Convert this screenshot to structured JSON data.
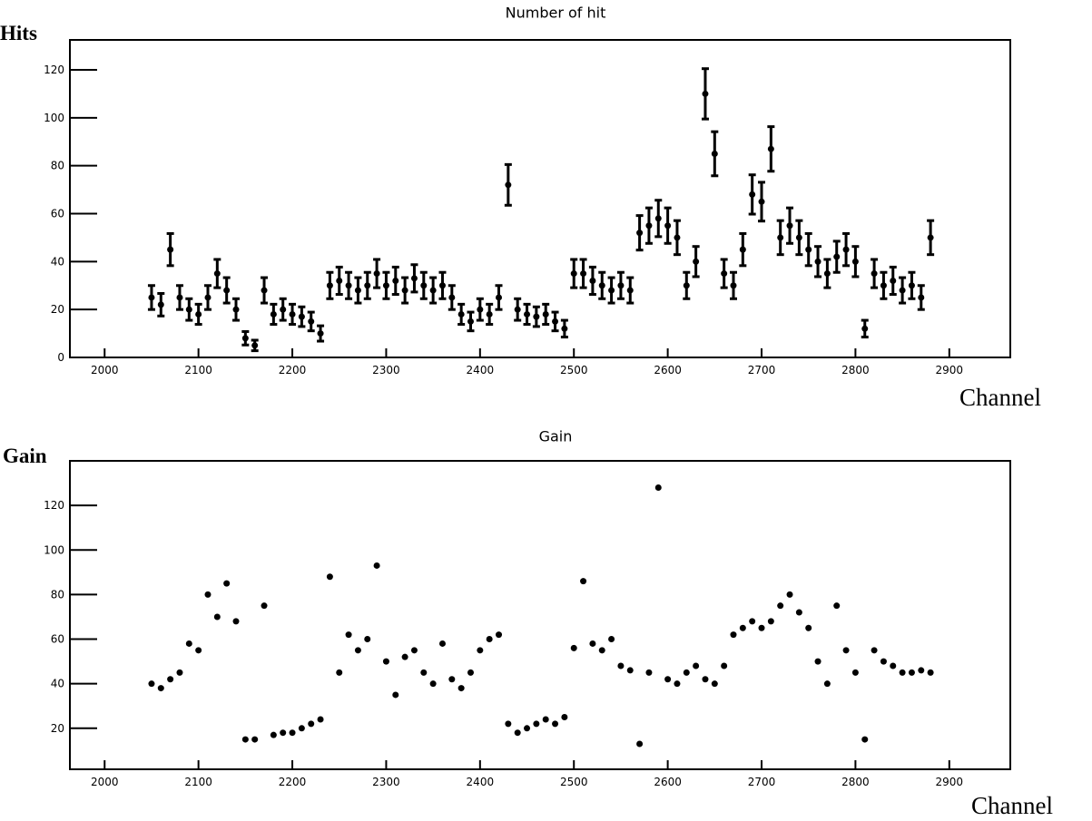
{
  "chart_data": [
    {
      "type": "scatter",
      "title": "Number of hit",
      "y_label": "Hits",
      "x_label": "Channel",
      "color": "#000000",
      "xlim": [
        1963,
        2965
      ],
      "ylim": [
        0,
        132.5
      ],
      "xticks": [
        2000,
        2100,
        2200,
        2300,
        2400,
        2500,
        2600,
        2700,
        2800,
        2900
      ],
      "yticks": [
        0,
        20,
        40,
        60,
        80,
        100,
        120
      ],
      "x": [
        2050,
        2060,
        2070,
        2080,
        2090,
        2100,
        2110,
        2120,
        2130,
        2140,
        2150,
        2160,
        2170,
        2180,
        2190,
        2200,
        2210,
        2220,
        2230,
        2240,
        2250,
        2260,
        2270,
        2280,
        2290,
        2300,
        2310,
        2320,
        2330,
        2340,
        2350,
        2360,
        2370,
        2380,
        2390,
        2400,
        2410,
        2420,
        2430,
        2440,
        2450,
        2460,
        2470,
        2480,
        2490,
        2500,
        2510,
        2520,
        2530,
        2540,
        2550,
        2560,
        2570,
        2580,
        2590,
        2600,
        2610,
        2620,
        2630,
        2640,
        2650,
        2660,
        2670,
        2680,
        2690,
        2700,
        2710,
        2720,
        2730,
        2740,
        2750,
        2760,
        2770,
        2780,
        2790,
        2800,
        2810,
        2820,
        2830,
        2840,
        2850,
        2860,
        2870,
        2880
      ],
      "values": [
        25,
        22,
        45,
        25,
        20,
        18,
        25,
        35,
        28,
        20,
        8,
        5,
        28,
        18,
        20,
        18,
        17,
        15,
        10,
        30,
        32,
        30,
        28,
        30,
        35,
        30,
        32,
        28,
        33,
        30,
        28,
        30,
        25,
        18,
        15,
        20,
        18,
        25,
        72,
        20,
        18,
        17,
        18,
        15,
        12,
        35,
        35,
        32,
        30,
        28,
        30,
        28,
        52,
        55,
        58,
        55,
        50,
        30,
        40,
        110,
        85,
        35,
        30,
        45,
        68,
        65,
        87,
        50,
        55,
        50,
        45,
        40,
        35,
        42,
        45,
        40,
        12,
        35,
        30,
        32,
        28,
        30,
        25,
        50
      ],
      "errors": [
        5,
        4.7,
        6.7,
        5,
        4.5,
        4.2,
        5,
        5.9,
        5.3,
        4.5,
        2.8,
        2.2,
        5.3,
        4.2,
        4.5,
        4.2,
        4.1,
        3.9,
        3.2,
        5.5,
        5.7,
        5.5,
        5.3,
        5.5,
        5.9,
        5.5,
        5.7,
        5.3,
        5.7,
        5.5,
        5.3,
        5.5,
        5,
        4.2,
        3.9,
        4.5,
        4.2,
        5,
        8.5,
        4.5,
        4.2,
        4.1,
        4.2,
        3.9,
        3.5,
        5.9,
        5.9,
        5.7,
        5.5,
        5.3,
        5.5,
        5.3,
        7.2,
        7.4,
        7.6,
        7.4,
        7.1,
        5.5,
        6.3,
        10.5,
        9.2,
        5.9,
        5.5,
        6.7,
        8.2,
        8.1,
        9.3,
        7.1,
        7.4,
        7.1,
        6.7,
        6.3,
        5.9,
        6.5,
        6.7,
        6.3,
        3.5,
        5.9,
        5.5,
        5.7,
        5.3,
        5.5,
        5,
        7.1
      ]
    },
    {
      "type": "scatter",
      "title": "Gain",
      "y_label": "Gain",
      "x_label": "Channel",
      "color": "#000000",
      "xlim": [
        1963,
        2965
      ],
      "ylim": [
        1.6,
        140
      ],
      "xticks": [
        2000,
        2100,
        2200,
        2300,
        2400,
        2500,
        2600,
        2700,
        2800,
        2900
      ],
      "yticks": [
        20,
        40,
        60,
        80,
        100,
        120
      ],
      "x": [
        2050,
        2060,
        2070,
        2080,
        2090,
        2100,
        2110,
        2120,
        2130,
        2140,
        2150,
        2160,
        2170,
        2180,
        2190,
        2200,
        2210,
        2220,
        2230,
        2240,
        2250,
        2260,
        2270,
        2280,
        2290,
        2300,
        2310,
        2320,
        2330,
        2340,
        2350,
        2360,
        2370,
        2380,
        2390,
        2400,
        2410,
        2420,
        2430,
        2440,
        2450,
        2460,
        2470,
        2480,
        2490,
        2500,
        2510,
        2520,
        2530,
        2540,
        2550,
        2560,
        2570,
        2580,
        2590,
        2600,
        2610,
        2620,
        2630,
        2640,
        2650,
        2660,
        2670,
        2680,
        2690,
        2700,
        2710,
        2720,
        2730,
        2740,
        2750,
        2760,
        2770,
        2780,
        2790,
        2800,
        2810,
        2820,
        2830,
        2840,
        2850,
        2860,
        2870,
        2880
      ],
      "values": [
        40,
        38,
        42,
        45,
        58,
        55,
        80,
        70,
        85,
        68,
        15,
        15,
        75,
        17,
        18,
        18,
        20,
        22,
        24,
        88,
        45,
        62,
        55,
        60,
        93,
        50,
        35,
        52,
        55,
        45,
        40,
        58,
        42,
        38,
        45,
        55,
        60,
        62,
        22,
        18,
        20,
        22,
        24,
        22,
        25,
        56,
        86,
        58,
        55,
        60,
        48,
        46,
        13,
        45,
        128,
        42,
        40,
        45,
        48,
        42,
        40,
        48,
        62,
        65,
        68,
        65,
        68,
        75,
        80,
        72,
        65,
        50,
        40,
        75,
        55,
        45,
        15,
        55,
        50,
        48,
        45,
        45,
        46,
        45
      ]
    }
  ]
}
